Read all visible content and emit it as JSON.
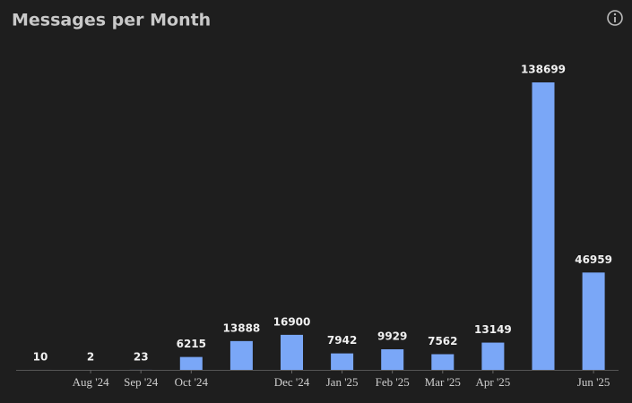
{
  "chart_data": {
    "type": "bar",
    "title": "Messages per Month",
    "categories": [
      null,
      "Aug '24",
      "Sep '24",
      "Oct '24",
      null,
      "Dec '24",
      "Jan '25",
      "Feb '25",
      "Mar '25",
      "Apr '25",
      null,
      "Jun '25"
    ],
    "values": [
      10,
      2,
      23,
      6215,
      13888,
      16900,
      7942,
      9929,
      7562,
      13149,
      138699,
      46959
    ],
    "color": "#7aa7f7"
  }
}
